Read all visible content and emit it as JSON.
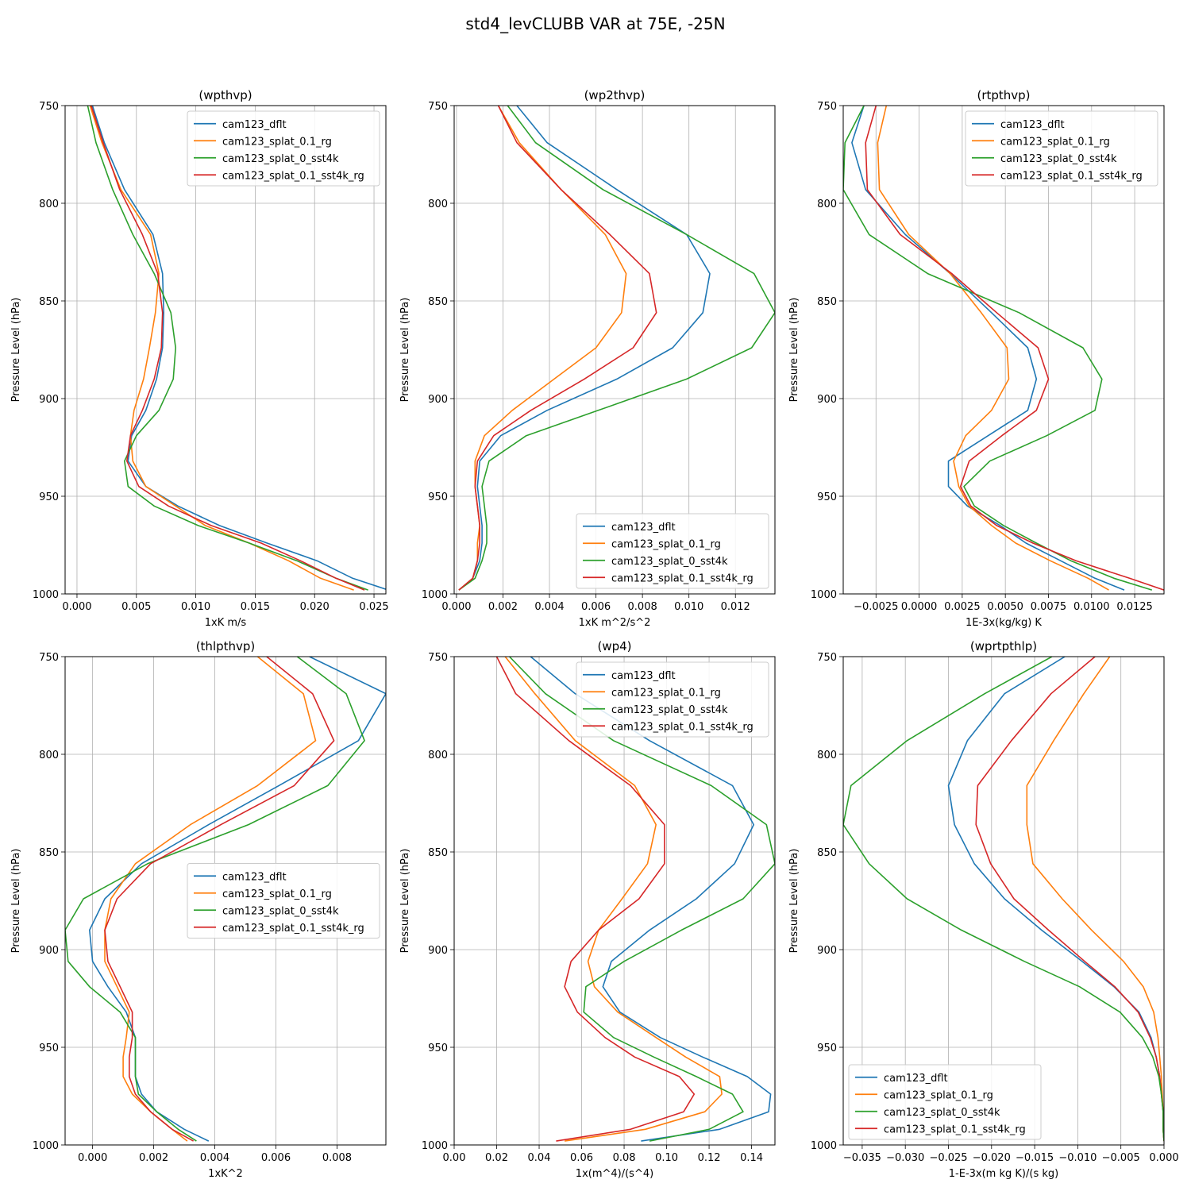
{
  "title": "std4_levCLUBB VAR at 75E, -25N",
  "colors": [
    "#1f77b4",
    "#ff7f0e",
    "#2ca02c",
    "#d62728"
  ],
  "chart_data": [
    {
      "type": "line",
      "title": "(wpthvp)",
      "xlabel": "1xK m/s",
      "ylabel": "Pressure Level (hPa)",
      "xlim": [
        -0.001,
        0.026
      ],
      "ylim": [
        1000,
        750
      ],
      "xticks": [
        "0.000",
        "0.005",
        "0.010",
        "0.015",
        "0.020",
        "0.025"
      ],
      "xtick_values": [
        0,
        0.005,
        0.01,
        0.015,
        0.02,
        0.025
      ],
      "yticks": [
        "750",
        "800",
        "850",
        "900",
        "950",
        "1000"
      ],
      "ytick_values": [
        750,
        800,
        850,
        900,
        950,
        1000
      ],
      "grid": true,
      "legend_loc": "top-right",
      "y": [
        750,
        769,
        793,
        816,
        836,
        856,
        874,
        890,
        906,
        919,
        932,
        945,
        955,
        965,
        974,
        983,
        992,
        998
      ],
      "series": [
        {
          "name": "cam123_dflt",
          "values": [
            0.0013,
            0.0023,
            0.004,
            0.0064,
            0.0072,
            0.0073,
            0.0072,
            0.0067,
            0.0058,
            0.0046,
            0.0043,
            0.0058,
            0.0085,
            0.012,
            0.016,
            0.0202,
            0.0232,
            0.0262
          ]
        },
        {
          "name": "cam123_splat_0.1_rg",
          "values": [
            0.0011,
            0.0021,
            0.0037,
            0.0062,
            0.0069,
            0.0066,
            0.0061,
            0.0056,
            0.0048,
            0.0045,
            0.0047,
            0.0058,
            0.0083,
            0.0108,
            0.0145,
            0.0178,
            0.0205,
            0.0233
          ]
        },
        {
          "name": "cam123_splat_0_sst4k",
          "values": [
            0.0009,
            0.0016,
            0.003,
            0.0047,
            0.0065,
            0.0079,
            0.0083,
            0.0081,
            0.0069,
            0.005,
            0.004,
            0.0043,
            0.0065,
            0.0102,
            0.0145,
            0.0185,
            0.0218,
            0.0245
          ]
        },
        {
          "name": "cam123_splat_0.1_sst4k_rg",
          "values": [
            0.0012,
            0.0022,
            0.0036,
            0.0055,
            0.0068,
            0.0072,
            0.0071,
            0.0065,
            0.0055,
            0.0045,
            0.0042,
            0.0052,
            0.0077,
            0.0113,
            0.0155,
            0.0188,
            0.0218,
            0.0242
          ]
        }
      ]
    },
    {
      "type": "line",
      "title": "(wp2thvp)",
      "xlabel": "1xK m^2/s^2",
      "ylabel": "Pressure Level (hPa)",
      "xlim": [
        -0.0001,
        0.0137
      ],
      "ylim": [
        1000,
        750
      ],
      "xticks": [
        "0.000",
        "0.002",
        "0.004",
        "0.006",
        "0.008",
        "0.010",
        "0.012"
      ],
      "xtick_values": [
        0,
        0.002,
        0.004,
        0.006,
        0.008,
        0.01,
        0.012
      ],
      "yticks": [
        "750",
        "800",
        "850",
        "900",
        "950",
        "1000"
      ],
      "ytick_values": [
        750,
        800,
        850,
        900,
        950,
        1000
      ],
      "grid": true,
      "legend_loc": "bottom-right",
      "y": [
        750,
        769,
        793,
        816,
        836,
        856,
        874,
        890,
        906,
        919,
        932,
        945,
        955,
        965,
        974,
        983,
        992,
        998
      ],
      "series": [
        {
          "name": "cam123_dflt",
          "values": [
            0.0026,
            0.0039,
            0.0069,
            0.0099,
            0.0109,
            0.0106,
            0.0093,
            0.0069,
            0.0039,
            0.0019,
            0.001,
            0.0009,
            0.001,
            0.0011,
            0.0011,
            0.001,
            0.0007,
            0.0001
          ]
        },
        {
          "name": "cam123_splat_0.1_rg",
          "values": [
            0.0018,
            0.0027,
            0.0045,
            0.0064,
            0.0073,
            0.0071,
            0.006,
            0.0042,
            0.0024,
            0.0012,
            0.0008,
            0.0008,
            0.0009,
            0.001,
            0.0009,
            0.0009,
            0.0007,
            0.0001
          ]
        },
        {
          "name": "cam123_splat_0_sst4k",
          "values": [
            0.0022,
            0.0034,
            0.0063,
            0.0099,
            0.0128,
            0.0137,
            0.0127,
            0.0099,
            0.0061,
            0.003,
            0.0014,
            0.0011,
            0.0012,
            0.0013,
            0.0013,
            0.0011,
            0.0008,
            0.0001
          ]
        },
        {
          "name": "cam123_splat_0.1_sst4k_rg",
          "values": [
            0.0018,
            0.0026,
            0.0045,
            0.0066,
            0.0083,
            0.0086,
            0.0076,
            0.0055,
            0.0032,
            0.0016,
            0.0009,
            0.0008,
            0.0009,
            0.001,
            0.001,
            0.0009,
            0.0007,
            0.0001
          ]
        }
      ]
    },
    {
      "type": "line",
      "title": "(rtpthvp)",
      "xlabel": "1E-3x(kg/kg) K",
      "ylabel": "Pressure Level (hPa)",
      "xlim": [
        -0.0044,
        0.0142
      ],
      "ylim": [
        1000,
        750
      ],
      "xticks": [
        "−0.0025",
        "0.0000",
        "0.0025",
        "0.0050",
        "0.0075",
        "0.0100",
        "0.0125"
      ],
      "xtick_values": [
        -0.0025,
        0,
        0.0025,
        0.005,
        0.0075,
        0.01,
        0.0125
      ],
      "yticks": [
        "750",
        "800",
        "850",
        "900",
        "950",
        "1000"
      ],
      "ytick_values": [
        750,
        800,
        850,
        900,
        950,
        1000
      ],
      "grid": true,
      "legend_loc": "top-right",
      "y": [
        750,
        769,
        793,
        816,
        836,
        856,
        874,
        890,
        906,
        919,
        932,
        945,
        955,
        965,
        974,
        983,
        992,
        998
      ],
      "series": [
        {
          "name": "cam123_dflt",
          "values": [
            -0.0032,
            -0.0039,
            -0.0031,
            -0.0008,
            0.0018,
            0.0042,
            0.0063,
            0.0068,
            0.0063,
            0.004,
            0.0017,
            0.0017,
            0.0028,
            0.0047,
            0.0062,
            0.0082,
            0.0102,
            0.0119
          ]
        },
        {
          "name": "cam123_splat_0.1_rg",
          "values": [
            -0.0019,
            -0.0024,
            -0.0023,
            -0.0006,
            0.0018,
            0.0036,
            0.0051,
            0.0052,
            0.0042,
            0.0027,
            0.002,
            0.0023,
            0.0029,
            0.0042,
            0.0056,
            0.0076,
            0.0098,
            0.011
          ]
        },
        {
          "name": "cam123_splat_0_sst4k",
          "values": [
            -0.0032,
            -0.0043,
            -0.0044,
            -0.0029,
            0.0005,
            0.0058,
            0.0095,
            0.0106,
            0.0102,
            0.0074,
            0.0041,
            0.0026,
            0.0032,
            0.0049,
            0.0068,
            0.0088,
            0.0113,
            0.0135
          ]
        },
        {
          "name": "cam123_splat_0.1_sst4k_rg",
          "values": [
            -0.0025,
            -0.0031,
            -0.003,
            -0.0011,
            0.0019,
            0.0045,
            0.0069,
            0.0075,
            0.0068,
            0.0048,
            0.0029,
            0.0024,
            0.003,
            0.0045,
            0.0066,
            0.0091,
            0.0122,
            0.0142
          ]
        }
      ]
    },
    {
      "type": "line",
      "title": "(thlpthvp)",
      "xlabel": "1xK^2",
      "ylabel": "Pressure Level (hPa)",
      "xlim": [
        -0.0009,
        0.0096
      ],
      "ylim": [
        1000,
        750
      ],
      "xticks": [
        "0.000",
        "0.002",
        "0.004",
        "0.006",
        "0.008"
      ],
      "xtick_values": [
        0,
        0.002,
        0.004,
        0.006,
        0.008
      ],
      "yticks": [
        "750",
        "800",
        "850",
        "900",
        "950",
        "1000"
      ],
      "ytick_values": [
        750,
        800,
        850,
        900,
        950,
        1000
      ],
      "grid": true,
      "legend_loc": "center-right",
      "y": [
        750,
        769,
        793,
        816,
        836,
        856,
        874,
        890,
        906,
        919,
        932,
        945,
        955,
        965,
        974,
        983,
        992,
        998
      ],
      "series": [
        {
          "name": "cam123_dflt",
          "values": [
            0.0071,
            0.0096,
            0.0087,
            0.0061,
            0.0038,
            0.0016,
            0.0004,
            -0.0001,
            0.0,
            0.0005,
            0.0011,
            0.0014,
            0.0014,
            0.0014,
            0.0016,
            0.0021,
            0.003,
            0.0038
          ]
        },
        {
          "name": "cam123_splat_0.1_rg",
          "values": [
            0.0054,
            0.0069,
            0.0073,
            0.0054,
            0.0032,
            0.0014,
            0.0006,
            0.0004,
            0.0004,
            0.0008,
            0.0012,
            0.0011,
            0.001,
            0.001,
            0.0013,
            0.0019,
            0.0026,
            0.0031
          ]
        },
        {
          "name": "cam123_splat_0_sst4k",
          "values": [
            0.0067,
            0.0083,
            0.0089,
            0.0077,
            0.0051,
            0.0018,
            -0.0003,
            -0.0009,
            -0.0008,
            -0.0001,
            0.0009,
            0.0014,
            0.0014,
            0.0014,
            0.0015,
            0.0021,
            0.0028,
            0.0034
          ]
        },
        {
          "name": "cam123_splat_0.1_sst4k_rg",
          "values": [
            0.0057,
            0.0072,
            0.0079,
            0.0066,
            0.0042,
            0.0019,
            0.0008,
            0.0004,
            0.0005,
            0.0009,
            0.0013,
            0.0013,
            0.0012,
            0.0012,
            0.0014,
            0.0019,
            0.0026,
            0.0033
          ]
        }
      ]
    },
    {
      "type": "line",
      "title": "(wp4)",
      "xlabel": "1x(m^4)/(s^4)",
      "ylabel": "Pressure Level (hPa)",
      "xlim": [
        0,
        0.151
      ],
      "ylim": [
        1000,
        750
      ],
      "xticks": [
        "0.00",
        "0.02",
        "0.04",
        "0.06",
        "0.08",
        "0.10",
        "0.12",
        "0.14"
      ],
      "xtick_values": [
        0,
        0.02,
        0.04,
        0.06,
        0.08,
        0.1,
        0.12,
        0.14
      ],
      "yticks": [
        "750",
        "800",
        "850",
        "900",
        "950",
        "1000"
      ],
      "ytick_values": [
        750,
        800,
        850,
        900,
        950,
        1000
      ],
      "grid": true,
      "legend_loc": "top-right",
      "y": [
        750,
        769,
        793,
        816,
        836,
        856,
        874,
        890,
        906,
        919,
        932,
        945,
        955,
        965,
        974,
        983,
        992,
        998
      ],
      "series": [
        {
          "name": "cam123_dflt",
          "values": [
            0.036,
            0.057,
            0.092,
            0.131,
            0.141,
            0.132,
            0.114,
            0.092,
            0.074,
            0.07,
            0.078,
            0.097,
            0.117,
            0.138,
            0.149,
            0.148,
            0.125,
            0.088
          ]
        },
        {
          "name": "cam123_splat_0.1_rg",
          "values": [
            0.024,
            0.038,
            0.057,
            0.085,
            0.095,
            0.091,
            0.079,
            0.068,
            0.063,
            0.066,
            0.077,
            0.095,
            0.109,
            0.125,
            0.126,
            0.118,
            0.09,
            0.052
          ]
        },
        {
          "name": "cam123_splat_0_sst4k",
          "values": [
            0.026,
            0.043,
            0.075,
            0.121,
            0.147,
            0.151,
            0.136,
            0.107,
            0.08,
            0.062,
            0.061,
            0.075,
            0.094,
            0.114,
            0.131,
            0.136,
            0.12,
            0.092
          ]
        },
        {
          "name": "cam123_splat_0.1_sst4k_rg",
          "values": [
            0.02,
            0.029,
            0.054,
            0.083,
            0.099,
            0.099,
            0.087,
            0.068,
            0.055,
            0.052,
            0.058,
            0.071,
            0.085,
            0.106,
            0.113,
            0.108,
            0.083,
            0.048
          ]
        }
      ]
    },
    {
      "type": "line",
      "title": "(wprtpthlp)",
      "xlabel": "1-E-3x(m kg K)/(s kg)",
      "ylabel": "Pressure Level (hPa)",
      "xlim": [
        -0.0372,
        0.0
      ],
      "ylim": [
        1000,
        750
      ],
      "xticks": [
        "−0.035",
        "−0.030",
        "−0.025",
        "−0.020",
        "−0.015",
        "−0.010",
        "−0.005",
        "0.000"
      ],
      "xtick_values": [
        -0.035,
        -0.03,
        -0.025,
        -0.02,
        -0.015,
        -0.01,
        -0.005,
        0
      ],
      "yticks": [
        "750",
        "800",
        "850",
        "900",
        "950",
        "1000"
      ],
      "ytick_values": [
        750,
        800,
        850,
        900,
        950,
        1000
      ],
      "grid": true,
      "legend_loc": "bottom-left",
      "y": [
        750,
        769,
        793,
        816,
        836,
        856,
        874,
        890,
        906,
        919,
        932,
        945,
        955,
        965,
        974,
        983,
        992,
        998
      ],
      "series": [
        {
          "name": "cam123_dflt",
          "values": [
            -0.0115,
            -0.0185,
            -0.0228,
            -0.025,
            -0.0243,
            -0.022,
            -0.0185,
            -0.0142,
            -0.0095,
            -0.0058,
            -0.0029,
            -0.0015,
            -0.0009,
            -0.0005,
            -0.0003,
            -0.0001,
            -0.0001,
            0.0
          ]
        },
        {
          "name": "cam123_splat_0.1_rg",
          "values": [
            -0.0063,
            -0.0093,
            -0.0128,
            -0.0159,
            -0.0159,
            -0.0152,
            -0.0118,
            -0.0084,
            -0.0047,
            -0.0024,
            -0.0012,
            -0.0007,
            -0.0005,
            -0.0003,
            -0.0002,
            -0.0001,
            -0.0001,
            0.0
          ]
        },
        {
          "name": "cam123_splat_0.1_sst4k_rg",
          "values": [
            -0.008,
            -0.0131,
            -0.0177,
            -0.0216,
            -0.0218,
            -0.0201,
            -0.0174,
            -0.0134,
            -0.0092,
            -0.0057,
            -0.003,
            -0.0016,
            -0.0009,
            -0.0005,
            -0.0003,
            -0.0001,
            -0.0001,
            0.0
          ]
        },
        {
          "name": "cam123_splat_0_sst4k",
          "values": [
            -0.013,
            -0.0208,
            -0.0298,
            -0.0363,
            -0.0372,
            -0.0342,
            -0.0298,
            -0.0235,
            -0.0162,
            -0.0098,
            -0.0051,
            -0.0025,
            -0.0013,
            -0.0006,
            -0.0003,
            -0.0001,
            -0.0001,
            0.0
          ]
        }
      ],
      "legend_order": [
        "cam123_dflt",
        "cam123_splat_0.1_rg",
        "cam123_splat_0_sst4k",
        "cam123_splat_0.1_sst4k_rg"
      ]
    }
  ]
}
